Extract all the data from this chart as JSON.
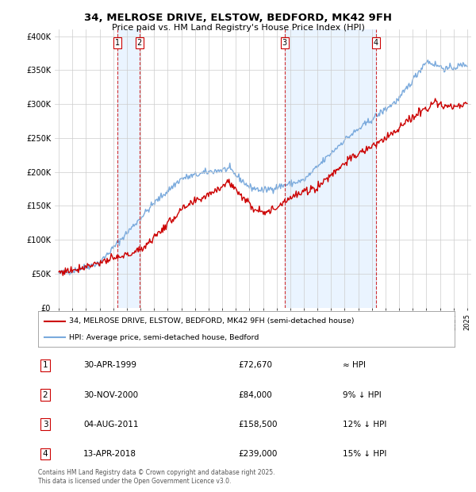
{
  "title_line1": "34, MELROSE DRIVE, ELSTOW, BEDFORD, MK42 9FH",
  "title_line2": "Price paid vs. HM Land Registry's House Price Index (HPI)",
  "legend_label_red": "34, MELROSE DRIVE, ELSTOW, BEDFORD, MK42 9FH (semi-detached house)",
  "legend_label_blue": "HPI: Average price, semi-detached house, Bedford",
  "footer": "Contains HM Land Registry data © Crown copyright and database right 2025.\nThis data is licensed under the Open Government Licence v3.0.",
  "transactions": [
    {
      "num": 1,
      "date": "30-APR-1999",
      "price": 72670,
      "note": "≈ HPI",
      "year": 1999.33
    },
    {
      "num": 2,
      "date": "30-NOV-2000",
      "price": 84000,
      "note": "9% ↓ HPI",
      "year": 2000.92
    },
    {
      "num": 3,
      "date": "04-AUG-2011",
      "price": 158500,
      "note": "12% ↓ HPI",
      "year": 2011.58
    },
    {
      "num": 4,
      "date": "13-APR-2018",
      "price": 239000,
      "note": "15% ↓ HPI",
      "year": 2018.28
    }
  ],
  "ylim": [
    0,
    410000
  ],
  "xlim": [
    1994.7,
    2025.3
  ],
  "yticks": [
    0,
    50000,
    100000,
    150000,
    200000,
    250000,
    300000,
    350000,
    400000
  ],
  "ytick_labels": [
    "£0",
    "£50K",
    "£100K",
    "£150K",
    "£200K",
    "£250K",
    "£300K",
    "£350K",
    "£400K"
  ],
  "background_color": "#ffffff",
  "grid_color": "#cccccc",
  "red_color": "#cc0000",
  "blue_color": "#7aaadd",
  "shade_color": "#ddeeff"
}
